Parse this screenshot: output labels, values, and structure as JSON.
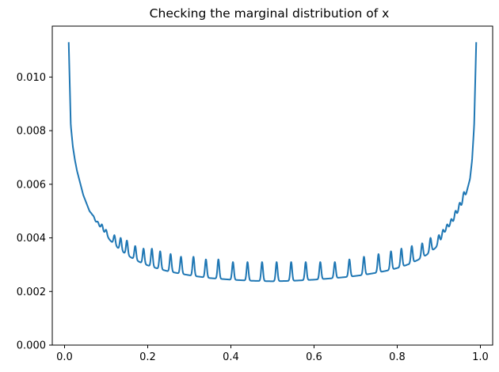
{
  "chart_data": {
    "type": "line",
    "title": "Checking the marginal distribution of x",
    "xlabel": "",
    "ylabel": "",
    "xlim": [
      -0.0295,
      1.0295
    ],
    "ylim": [
      0.0,
      0.0119
    ],
    "xticks": [
      {
        "value": 0.0,
        "label": "0.0"
      },
      {
        "value": 0.2,
        "label": "0.2"
      },
      {
        "value": 0.4,
        "label": "0.4"
      },
      {
        "value": 0.6,
        "label": "0.6"
      },
      {
        "value": 0.8,
        "label": "0.8"
      },
      {
        "value": 1.0,
        "label": "1.0"
      }
    ],
    "yticks": [
      {
        "value": 0.0,
        "label": "0.000"
      },
      {
        "value": 0.002,
        "label": "0.002"
      },
      {
        "value": 0.004,
        "label": "0.004"
      },
      {
        "value": 0.006,
        "label": "0.006"
      },
      {
        "value": 0.008,
        "label": "0.008"
      },
      {
        "value": 0.01,
        "label": "0.010"
      }
    ],
    "grid": false,
    "legend": "none",
    "series": [
      {
        "color": "#1f77b4",
        "x": [
          0.01,
          0.015,
          0.02,
          0.025,
          0.03,
          0.035,
          0.04,
          0.045,
          0.05,
          0.055,
          0.06,
          0.065,
          0.07,
          0.075,
          0.08,
          0.085,
          0.09,
          0.095,
          0.1,
          0.11,
          0.12,
          0.13,
          0.14,
          0.15,
          0.17,
          0.19,
          0.21,
          0.23,
          0.25,
          0.28,
          0.31,
          0.35,
          0.4,
          0.45,
          0.5,
          0.55,
          0.6,
          0.65,
          0.69,
          0.72,
          0.75,
          0.77,
          0.79,
          0.81,
          0.83,
          0.85,
          0.86,
          0.87,
          0.88,
          0.89,
          0.9,
          0.905,
          0.91,
          0.915,
          0.92,
          0.925,
          0.93,
          0.935,
          0.94,
          0.945,
          0.95,
          0.955,
          0.96,
          0.965,
          0.97,
          0.975,
          0.98,
          0.985,
          0.99
        ],
        "y": [
          0.0113,
          0.0082,
          0.0074,
          0.0069,
          0.0065,
          0.0062,
          0.0059,
          0.0056,
          0.0054,
          0.0052,
          0.005,
          0.0049,
          0.0047,
          0.0046,
          0.0045,
          0.0044,
          0.0043,
          0.0042,
          0.0041,
          0.0039,
          0.00375,
          0.0036,
          0.00348,
          0.00336,
          0.00318,
          0.00303,
          0.00292,
          0.00283,
          0.00275,
          0.00266,
          0.00258,
          0.0025,
          0.00244,
          0.0024,
          0.00238,
          0.0024,
          0.00244,
          0.0025,
          0.00256,
          0.00262,
          0.0027,
          0.00276,
          0.00283,
          0.00292,
          0.00303,
          0.00318,
          0.00327,
          0.00336,
          0.00348,
          0.0036,
          0.00375,
          0.0039,
          0.0041,
          0.0042,
          0.0043,
          0.0044,
          0.0045,
          0.0046,
          0.0047,
          0.0049,
          0.005,
          0.0052,
          0.0054,
          0.0056,
          0.0059,
          0.0062,
          0.0069,
          0.0082,
          0.0113
        ]
      }
    ],
    "spikes": {
      "x": [
        0.04,
        0.05,
        0.06,
        0.07,
        0.08,
        0.09,
        0.1,
        0.12,
        0.135,
        0.15,
        0.17,
        0.19,
        0.21,
        0.23,
        0.255,
        0.28,
        0.31,
        0.34,
        0.37,
        0.405,
        0.44,
        0.475,
        0.51,
        0.545,
        0.58,
        0.615,
        0.65,
        0.685,
        0.72,
        0.755,
        0.785,
        0.81,
        0.835,
        0.86,
        0.88,
        0.9,
        0.91,
        0.92,
        0.93,
        0.94,
        0.95,
        0.96
      ],
      "peak": [
        0.0057,
        0.0053,
        0.005,
        0.0048,
        0.0046,
        0.0045,
        0.0043,
        0.0041,
        0.004,
        0.0039,
        0.0037,
        0.0036,
        0.0036,
        0.0035,
        0.0034,
        0.0033,
        0.0033,
        0.0032,
        0.0032,
        0.0031,
        0.0031,
        0.0031,
        0.0031,
        0.0031,
        0.0031,
        0.0031,
        0.0031,
        0.0032,
        0.0033,
        0.0034,
        0.0035,
        0.0036,
        0.0037,
        0.0038,
        0.004,
        0.0041,
        0.0043,
        0.0045,
        0.0047,
        0.005,
        0.0053,
        0.0057
      ]
    }
  }
}
